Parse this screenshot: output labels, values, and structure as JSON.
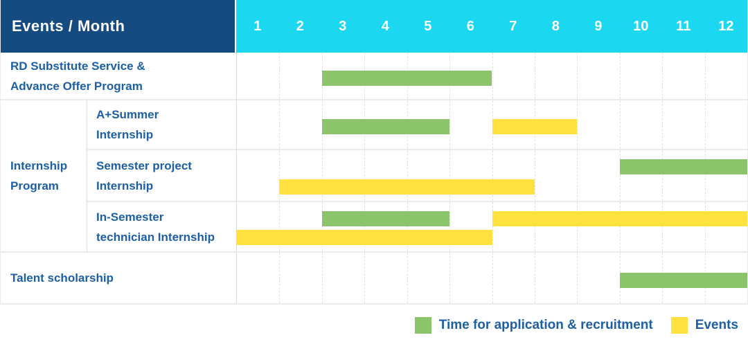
{
  "header": {
    "label_column": "Events / Month",
    "months": [
      "1",
      "2",
      "3",
      "4",
      "5",
      "6",
      "7",
      "8",
      "9",
      "10",
      "11",
      "12"
    ]
  },
  "colors": {
    "header_bg": "#154B80",
    "months_bg": "#1BD7EF",
    "label_text": "#1D5FA5",
    "grid_line": "#E2E2E2",
    "application_green": "#8BC46A",
    "events_yellow": "#FFE23F"
  },
  "chart_data": {
    "type": "bar",
    "subtype": "gantt",
    "x_unit": "month",
    "x_range": [
      1,
      12
    ],
    "grid": true,
    "legend_position": "bottom-right",
    "rows": [
      {
        "group": null,
        "label": "RD Substitute Service &\nAdvance Offer Program",
        "bars": [
          {
            "series": "application",
            "start": 3,
            "end": 6,
            "lane": "mid"
          }
        ]
      },
      {
        "group": "Internship Program",
        "label": "A+Summer\nInternship",
        "bars": [
          {
            "series": "application",
            "start": 3,
            "end": 5,
            "lane": "mid"
          },
          {
            "series": "events",
            "start": 7,
            "end": 8,
            "lane": "mid"
          }
        ]
      },
      {
        "group": "Internship Program",
        "label": "Semester project\nInternship",
        "bars": [
          {
            "series": "application",
            "start": 10,
            "end": 12,
            "lane": "top"
          },
          {
            "series": "events",
            "start": 2,
            "end": 7,
            "lane": "bottom"
          }
        ]
      },
      {
        "group": "Internship Program",
        "label": "In-Semester\ntechnician Internship",
        "bars": [
          {
            "series": "application",
            "start": 3,
            "end": 5,
            "lane": "top"
          },
          {
            "series": "events",
            "start": 7,
            "end": 12,
            "lane": "top"
          },
          {
            "series": "events",
            "start": 1,
            "end": 6,
            "lane": "bottom"
          }
        ]
      },
      {
        "group": null,
        "label": "Talent scholarship",
        "bars": [
          {
            "series": "application",
            "start": 10,
            "end": 12,
            "lane": "mid"
          }
        ]
      }
    ],
    "group_label": "Internship\nProgram",
    "legend": [
      {
        "series": "application",
        "label": "Time for application & recruitment",
        "color": "#8BC46A"
      },
      {
        "series": "events",
        "label": "Events",
        "color": "#FFE23F"
      }
    ]
  }
}
